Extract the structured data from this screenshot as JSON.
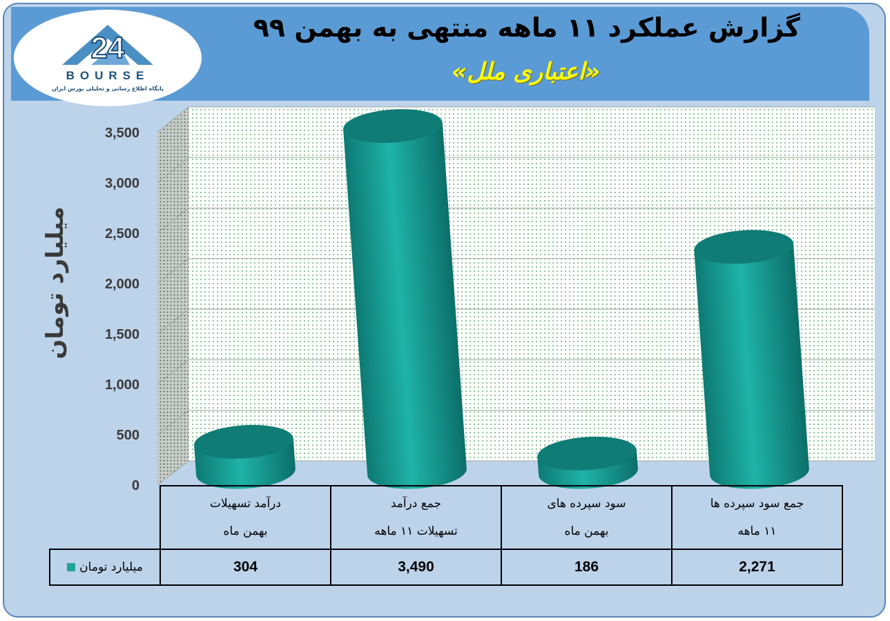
{
  "header": {
    "title": "گزارش عملکرد ۱۱ ماهه منتهی به بهمن ۹۹",
    "subtitle": "«اعتباری ملل»",
    "logo_text": "BOURSE",
    "logo_subtext": "پایگاه اطلاع رسانی و تحلیلی بورس ایران"
  },
  "colors": {
    "bar": "#1fa59c",
    "bar_top": "#0f7c75",
    "background": "#bdd3ea",
    "title_bar": "#5b9bd5"
  },
  "chart_data": {
    "type": "bar",
    "title": "گزارش عملکرد ۱۱ ماهه منتهی به بهمن ۹۹",
    "subtitle": "«اعتباری ملل»",
    "ylabel": "میلیارد تومان",
    "ylim": [
      0,
      3500
    ],
    "y_ticks": [
      "0",
      "500",
      "1,000",
      "1,500",
      "2,000",
      "2,500",
      "3,000",
      "3,500"
    ],
    "grid": true,
    "categories": [
      {
        "line1": "درآمد تسهیلات",
        "line2": "بهمن  ماه"
      },
      {
        "line1": "جمع درآمد",
        "line2": "تسهیلات ۱۱ ماهه"
      },
      {
        "line1": "سود سپرده های",
        "line2": "بهمن ماه"
      },
      {
        "line1": "جمع سود سپرده ها",
        "line2": "۱۱ ماهه"
      }
    ],
    "series": [
      {
        "name": "میلیارد تومان",
        "values": [
          304,
          3490,
          186,
          2271
        ],
        "labels": [
          "304",
          "3,490",
          "186",
          "2,271"
        ]
      }
    ]
  }
}
